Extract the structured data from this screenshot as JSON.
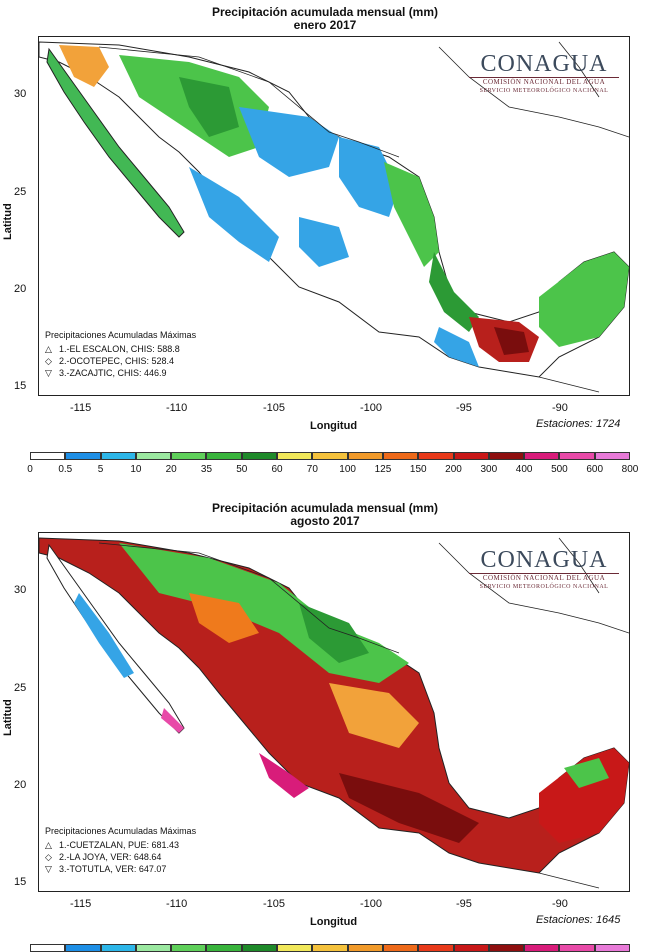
{
  "maps": [
    {
      "title": "Precipitación acumulada mensual (mm)",
      "subtitle": "enero 2017",
      "xlabel": "Longitud",
      "ylabel": "Latitud",
      "x_ticks": [
        "-115",
        "-110",
        "-105",
        "-100",
        "-95",
        "-90"
      ],
      "y_ticks": [
        "30",
        "25",
        "20",
        "15"
      ],
      "stations_label": "Estaciones:",
      "stations_value": "1724",
      "max_header": "Precipitaciones Acumuladas Máximas",
      "max_rows": [
        {
          "symbol": "triangle-up-icon",
          "text": "1.-EL ESCALON, CHIS: 588.8"
        },
        {
          "symbol": "diamond-icon",
          "text": "2.-OCOTEPEC, CHIS: 528.4"
        },
        {
          "symbol": "triangle-down-icon",
          "text": "3.-ZACAJTIC, CHIS: 446.9"
        }
      ],
      "dominant_colors": [
        "#35a4e6",
        "#3fbf4a",
        "#7ddd6a"
      ]
    },
    {
      "title": "Precipitación acumulada mensual (mm)",
      "subtitle": "agosto 2017",
      "xlabel": "Longitud",
      "ylabel": "Latitud",
      "x_ticks": [
        "-115",
        "-110",
        "-105",
        "-100",
        "-95",
        "-90"
      ],
      "y_ticks": [
        "30",
        "25",
        "20",
        "15"
      ],
      "stations_label": "Estaciones:",
      "stations_value": "1645",
      "max_header": "Precipitaciones Acumuladas Máximas",
      "max_rows": [
        {
          "symbol": "triangle-up-icon",
          "text": "1.-CUETZALAN, PUE: 681.43"
        },
        {
          "symbol": "diamond-icon",
          "text": "2.-LA JOYA, VER: 648.64"
        },
        {
          "symbol": "triangle-down-icon",
          "text": "3.-TOTUTLA, VER: 647.07"
        }
      ],
      "dominant_colors": [
        "#b8201c",
        "#7a0d0d",
        "#ef7a1c"
      ]
    }
  ],
  "logo": {
    "name": "CONAGUA",
    "line1": "COMISIÓN NACIONAL DEL AGUA",
    "line2": "SERVICIO METEOROLÓGICO NACIONAL"
  },
  "legend": {
    "ticks": [
      "0",
      "0.5",
      "5",
      "10",
      "20",
      "35",
      "50",
      "60",
      "70",
      "100",
      "125",
      "150",
      "200",
      "300",
      "400",
      "500",
      "600",
      "800"
    ],
    "colors": [
      "#ffffff",
      "#1e8fe6",
      "#2db6e8",
      "#9be8a0",
      "#5fd05a",
      "#39b43c",
      "#1f8a2a",
      "#f1e85a",
      "#f5c23c",
      "#f19a2a",
      "#ee6a1a",
      "#e83a1a",
      "#c81818",
      "#8e0f0f",
      "#d81c7a",
      "#e84aa8",
      "#e87ad8"
    ]
  }
}
